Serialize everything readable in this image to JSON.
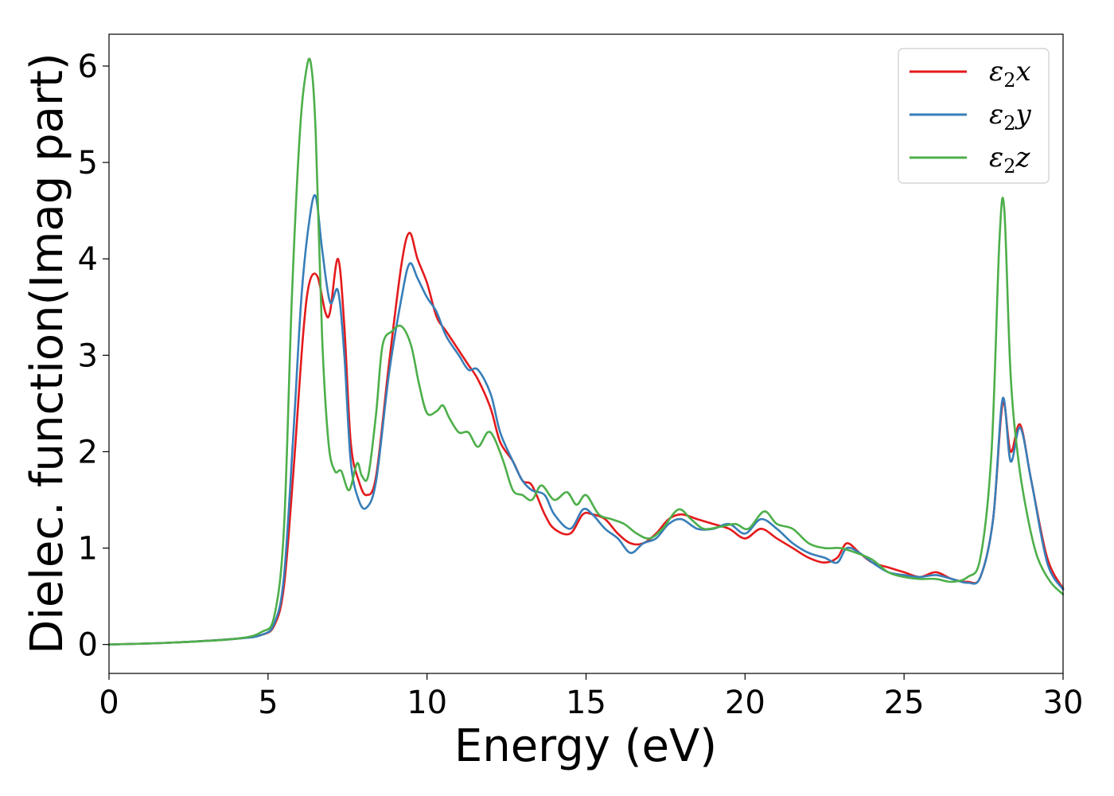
{
  "chart_data": {
    "type": "line",
    "xlabel": "Energy (eV)",
    "ylabel": "Dielec. function(Imag part)",
    "xlim": [
      0,
      30
    ],
    "ylim": [
      -0.3,
      6.33
    ],
    "xticks": [
      0,
      5,
      10,
      15,
      20,
      25,
      30
    ],
    "yticks": [
      0,
      1,
      2,
      3,
      4,
      5,
      6
    ],
    "legend_position": "top-right",
    "grid": false,
    "series": [
      {
        "name": "ε2x",
        "label_base": "ε",
        "label_sub": "2",
        "label_var": "x",
        "color": "#e41a1c",
        "x": [
          0,
          2,
          4,
          4.8,
          5.2,
          5.5,
          5.8,
          6.1,
          6.3,
          6.55,
          6.8,
          6.95,
          7.2,
          7.4,
          7.6,
          7.85,
          8.1,
          8.4,
          8.8,
          9.2,
          9.45,
          9.7,
          10.0,
          10.3,
          10.6,
          11.0,
          11.3,
          11.6,
          12.0,
          12.3,
          12.7,
          13.0,
          13.3,
          13.7,
          14.0,
          14.5,
          14.9,
          15.2,
          15.6,
          16.0,
          16.4,
          16.8,
          17.2,
          17.6,
          18.0,
          18.5,
          19.0,
          19.5,
          20.0,
          20.5,
          21.0,
          21.5,
          22.0,
          22.5,
          22.9,
          23.2,
          23.6,
          24.0,
          24.5,
          25.0,
          25.5,
          26.0,
          26.5,
          27.0,
          27.4,
          27.8,
          28.1,
          28.35,
          28.65,
          29.0,
          29.5,
          30.0
        ],
        "y": [
          0.0,
          0.02,
          0.06,
          0.1,
          0.2,
          0.6,
          1.8,
          3.2,
          3.75,
          3.82,
          3.45,
          3.45,
          4.0,
          3.3,
          2.1,
          1.7,
          1.55,
          1.75,
          2.9,
          3.95,
          4.27,
          4.0,
          3.75,
          3.4,
          3.25,
          3.05,
          2.9,
          2.75,
          2.45,
          2.1,
          1.9,
          1.7,
          1.65,
          1.35,
          1.2,
          1.15,
          1.35,
          1.35,
          1.3,
          1.15,
          1.05,
          1.05,
          1.15,
          1.3,
          1.35,
          1.3,
          1.25,
          1.2,
          1.1,
          1.2,
          1.1,
          1.0,
          0.9,
          0.85,
          0.9,
          1.05,
          0.95,
          0.85,
          0.8,
          0.75,
          0.7,
          0.75,
          0.68,
          0.65,
          0.7,
          1.3,
          2.5,
          2.0,
          2.28,
          1.7,
          0.9,
          0.58
        ]
      },
      {
        "name": "ε2y",
        "label_base": "ε",
        "label_sub": "2",
        "label_var": "y",
        "color": "#377eb8",
        "x": [
          0,
          2,
          4,
          4.8,
          5.2,
          5.5,
          5.8,
          6.05,
          6.3,
          6.5,
          6.7,
          6.95,
          7.2,
          7.4,
          7.6,
          7.85,
          8.1,
          8.4,
          8.8,
          9.2,
          9.45,
          9.7,
          10.0,
          10.3,
          10.6,
          11.0,
          11.3,
          11.6,
          12.0,
          12.3,
          12.7,
          13.0,
          13.3,
          13.7,
          14.0,
          14.5,
          14.9,
          15.2,
          15.6,
          16.0,
          16.4,
          16.8,
          17.2,
          17.6,
          18.0,
          18.5,
          19.0,
          19.5,
          20.0,
          20.5,
          21.0,
          21.5,
          22.0,
          22.5,
          22.9,
          23.2,
          23.6,
          24.0,
          24.5,
          25.0,
          25.5,
          26.0,
          26.5,
          27.0,
          27.4,
          27.8,
          28.1,
          28.35,
          28.65,
          29.0,
          29.5,
          30.0
        ],
        "y": [
          0.0,
          0.02,
          0.06,
          0.1,
          0.22,
          0.7,
          2.2,
          3.6,
          4.4,
          4.65,
          4.1,
          3.55,
          3.67,
          3.0,
          1.9,
          1.5,
          1.42,
          1.7,
          2.8,
          3.6,
          3.95,
          3.8,
          3.6,
          3.45,
          3.2,
          3.0,
          2.85,
          2.85,
          2.6,
          2.2,
          1.9,
          1.7,
          1.6,
          1.55,
          1.35,
          1.2,
          1.4,
          1.35,
          1.2,
          1.1,
          0.95,
          1.05,
          1.1,
          1.25,
          1.3,
          1.2,
          1.2,
          1.25,
          1.15,
          1.3,
          1.2,
          1.05,
          0.95,
          0.9,
          0.85,
          1.0,
          0.95,
          0.85,
          0.75,
          0.72,
          0.7,
          0.72,
          0.68,
          0.64,
          0.7,
          1.3,
          2.55,
          1.9,
          2.25,
          1.7,
          0.85,
          0.57
        ]
      },
      {
        "name": "ε2z",
        "label_base": "ε",
        "label_sub": "2",
        "label_var": "z",
        "color": "#4daf4a",
        "x": [
          0,
          2,
          4,
          4.8,
          5.2,
          5.5,
          5.75,
          6.0,
          6.2,
          6.35,
          6.5,
          6.7,
          6.9,
          7.1,
          7.3,
          7.55,
          7.8,
          7.95,
          8.15,
          8.4,
          8.6,
          8.9,
          9.2,
          9.5,
          9.75,
          10.0,
          10.3,
          10.5,
          10.7,
          11.0,
          11.3,
          11.6,
          11.9,
          12.1,
          12.4,
          12.7,
          13.0,
          13.3,
          13.6,
          14.0,
          14.4,
          14.7,
          15.0,
          15.4,
          15.8,
          16.2,
          16.6,
          17.0,
          17.4,
          17.9,
          18.3,
          18.7,
          19.2,
          19.7,
          20.1,
          20.6,
          21.0,
          21.5,
          22.0,
          22.5,
          23.0,
          23.5,
          24.0,
          24.5,
          25.0,
          25.5,
          26.0,
          26.5,
          27.0,
          27.4,
          27.75,
          28.0,
          28.15,
          28.35,
          28.6,
          28.9,
          29.2,
          29.6,
          30.0
        ],
        "y": [
          0.0,
          0.02,
          0.06,
          0.13,
          0.3,
          1.2,
          3.6,
          5.3,
          5.95,
          6.02,
          5.3,
          3.2,
          2.1,
          1.8,
          1.8,
          1.6,
          1.88,
          1.75,
          1.75,
          2.4,
          3.1,
          3.25,
          3.3,
          3.1,
          2.7,
          2.4,
          2.42,
          2.48,
          2.35,
          2.2,
          2.2,
          2.05,
          2.2,
          2.15,
          1.9,
          1.6,
          1.55,
          1.5,
          1.65,
          1.5,
          1.58,
          1.45,
          1.55,
          1.35,
          1.3,
          1.25,
          1.15,
          1.1,
          1.2,
          1.4,
          1.3,
          1.2,
          1.22,
          1.25,
          1.2,
          1.38,
          1.25,
          1.2,
          1.05,
          1.0,
          1.0,
          0.95,
          0.88,
          0.75,
          0.7,
          0.68,
          0.68,
          0.65,
          0.7,
          0.9,
          2.0,
          4.2,
          4.52,
          2.8,
          1.9,
          1.3,
          0.9,
          0.65,
          0.52
        ]
      }
    ]
  }
}
